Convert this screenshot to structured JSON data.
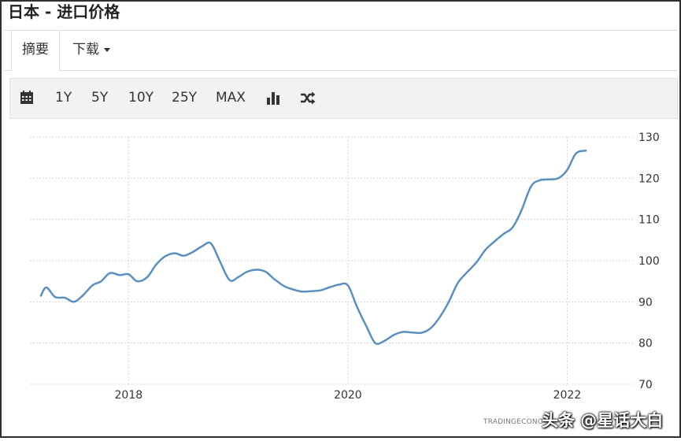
{
  "header": {
    "title": "日本 - 进口价格"
  },
  "tabs": [
    {
      "label": "摘要",
      "active": true
    },
    {
      "label": "下载",
      "active": false
    }
  ],
  "toolbar": {
    "ranges": [
      "1Y",
      "5Y",
      "10Y",
      "25Y",
      "MAX"
    ],
    "icons": [
      "calendar-icon",
      "bar-chart-icon",
      "shuffle-icon"
    ]
  },
  "chart_data": {
    "type": "line",
    "title": "",
    "xlabel": "",
    "ylabel": "",
    "x_ticks": [
      "2018",
      "2020",
      "2022"
    ],
    "y_ticks": [
      "130",
      "120",
      "110",
      "100",
      "90",
      "80",
      "70"
    ],
    "ylim": [
      70,
      130
    ],
    "xlim": [
      2017.1,
      2022.6
    ],
    "grid": true,
    "line_color": "#5b8fbe",
    "series": [
      {
        "x": [
          2017.2,
          2017.25,
          2017.33,
          2017.42,
          2017.5,
          2017.58,
          2017.67,
          2017.75,
          2017.83,
          2017.92,
          2018.0,
          2018.08,
          2018.17,
          2018.25,
          2018.33,
          2018.42,
          2018.5,
          2018.58,
          2018.67,
          2018.75,
          2018.83,
          2018.92,
          2019.0,
          2019.08,
          2019.17,
          2019.25,
          2019.33,
          2019.42,
          2019.5,
          2019.58,
          2019.67,
          2019.75,
          2019.83,
          2019.92,
          2020.0,
          2020.08,
          2020.17,
          2020.25,
          2020.33,
          2020.42,
          2020.5,
          2020.58,
          2020.67,
          2020.75,
          2020.83,
          2020.92,
          2021.0,
          2021.08,
          2021.17,
          2021.25,
          2021.33,
          2021.42,
          2021.5,
          2021.58,
          2021.67,
          2021.75,
          2021.83,
          2021.92,
          2022.0,
          2022.08,
          2022.17
        ],
        "y": [
          91.5,
          93.5,
          91.2,
          91.0,
          90.0,
          91.5,
          94.0,
          95.0,
          97.0,
          96.5,
          96.7,
          95.0,
          96.0,
          99.0,
          101.0,
          101.8,
          101.2,
          102.0,
          103.5,
          104.2,
          100.0,
          95.3,
          96.0,
          97.3,
          97.8,
          97.3,
          95.5,
          93.8,
          93.0,
          92.5,
          92.6,
          92.8,
          93.5,
          94.2,
          94.0,
          89.0,
          84.0,
          80.0,
          80.5,
          82.0,
          82.7,
          82.6,
          82.5,
          83.5,
          86.0,
          90.0,
          94.5,
          97.0,
          99.5,
          102.5,
          104.5,
          106.5,
          108.0,
          112.0,
          118.0,
          119.5,
          119.7,
          120.0,
          122.0,
          126.0,
          126.7
        ]
      }
    ]
  },
  "footer": {
    "credit": "TRADINGECONO",
    "watermark": "头条 @星话大白"
  }
}
